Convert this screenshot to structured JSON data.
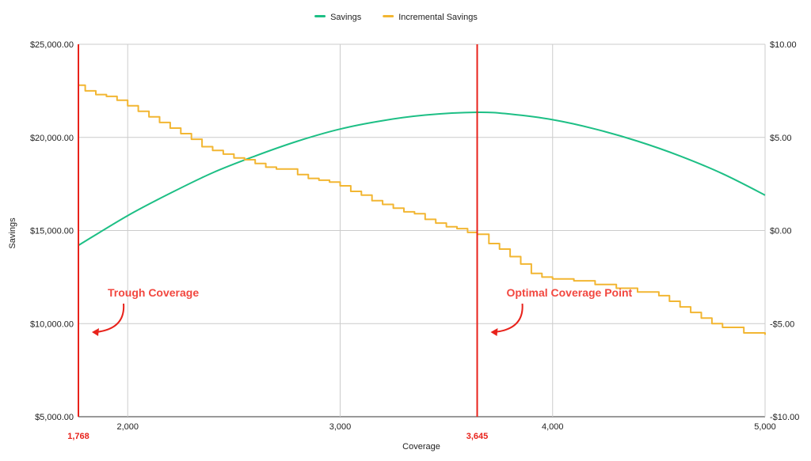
{
  "chart_data": {
    "type": "line",
    "xlabel": "Coverage",
    "ylabel_left": "Savings",
    "xlim": [
      1768,
      5000
    ],
    "ylim_left": [
      5000,
      25000
    ],
    "ylim_right": [
      -10,
      10
    ],
    "x_ticks": [
      {
        "value": 2000,
        "label": "2,000"
      },
      {
        "value": 3000,
        "label": "3,000"
      },
      {
        "value": 4000,
        "label": "4,000"
      },
      {
        "value": 5000,
        "label": "5,000"
      }
    ],
    "y_left_ticks": [
      {
        "value": 5000,
        "label": "$5,000.00"
      },
      {
        "value": 10000,
        "label": "$10,000.00"
      },
      {
        "value": 15000,
        "label": "$15,000.00"
      },
      {
        "value": 20000,
        "label": "$20,000.00"
      },
      {
        "value": 25000,
        "label": "$25,000.00"
      }
    ],
    "y_right_ticks": [
      {
        "value": -10,
        "label": "-$10.00"
      },
      {
        "value": -5,
        "label": "-$5.00"
      },
      {
        "value": 0,
        "label": "$0.00"
      },
      {
        "value": 5,
        "label": "$5.00"
      },
      {
        "value": 10,
        "label": "$10.00"
      }
    ],
    "grid": true,
    "legend_position": "top-center",
    "series": [
      {
        "name": "Savings",
        "axis": "left",
        "color": "#1dbf85",
        "x": [
          1768,
          2000,
          2200,
          2400,
          2600,
          2800,
          3000,
          3200,
          3400,
          3645,
          3800,
          4000,
          4200,
          4400,
          4600,
          4800,
          5000
        ],
        "y": [
          14200,
          15800,
          17000,
          18100,
          19000,
          19800,
          20450,
          20900,
          21200,
          21350,
          21250,
          20950,
          20450,
          19800,
          19000,
          18050,
          16900
        ]
      },
      {
        "name": "Incremental Savings",
        "axis": "right",
        "color": "#f2b632",
        "step": true,
        "x": [
          1768,
          1800,
          1850,
          1900,
          1950,
          2000,
          2050,
          2100,
          2150,
          2200,
          2250,
          2300,
          2350,
          2400,
          2450,
          2500,
          2550,
          2600,
          2650,
          2700,
          2750,
          2800,
          2850,
          2900,
          2950,
          3000,
          3050,
          3100,
          3150,
          3200,
          3250,
          3300,
          3350,
          3400,
          3450,
          3500,
          3550,
          3600,
          3645,
          3700,
          3750,
          3800,
          3850,
          3900,
          3950,
          4000,
          4100,
          4200,
          4300,
          4400,
          4500,
          4550,
          4600,
          4650,
          4700,
          4750,
          4800,
          4900,
          5000
        ],
        "y": [
          7.8,
          7.5,
          7.3,
          7.2,
          7.0,
          6.7,
          6.4,
          6.1,
          5.8,
          5.5,
          5.2,
          4.9,
          4.5,
          4.3,
          4.1,
          3.9,
          3.8,
          3.6,
          3.4,
          3.3,
          3.3,
          3.0,
          2.8,
          2.7,
          2.6,
          2.4,
          2.1,
          1.9,
          1.6,
          1.4,
          1.2,
          1.0,
          0.9,
          0.6,
          0.4,
          0.2,
          0.1,
          -0.1,
          -0.2,
          -0.7,
          -1.0,
          -1.4,
          -1.8,
          -2.3,
          -2.5,
          -2.6,
          -2.7,
          -2.9,
          -3.1,
          -3.3,
          -3.5,
          -3.8,
          -4.1,
          -4.4,
          -4.7,
          -5.0,
          -5.2,
          -5.5,
          -5.6
        ]
      }
    ],
    "markers": [
      {
        "x": 1768,
        "label": "1,768",
        "color": "#e8221b",
        "annotation": "Trough Coverage"
      },
      {
        "x": 3645,
        "label": "3,645",
        "color": "#e8221b",
        "annotation": "Optimal Coverage Point"
      }
    ],
    "annotation_color": "#f2473f"
  }
}
